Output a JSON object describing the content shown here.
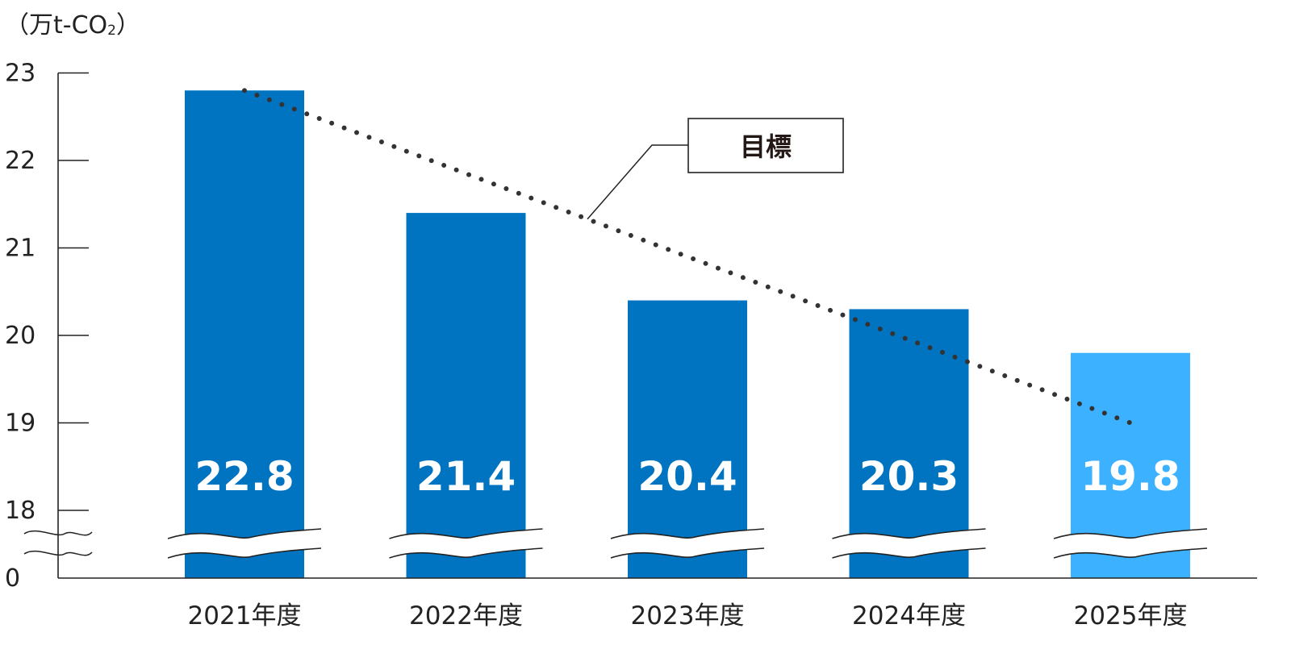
{
  "chart_data": {
    "type": "bar",
    "unit_label": "（万t-CO",
    "unit_sub": "2",
    "unit_close": "）",
    "y_ticks": [
      "0",
      "18",
      "19",
      "20",
      "21",
      "22",
      "23"
    ],
    "axis_break": true,
    "ylim": [
      18,
      23
    ],
    "categories": [
      "2021年度",
      "2022年度",
      "2023年度",
      "2024年度",
      "2025年度"
    ],
    "series": [
      {
        "values": [
          22.8,
          21.4,
          20.4,
          20.3,
          19.8
        ]
      }
    ],
    "value_labels": [
      "22.8",
      "21.4",
      "20.4",
      "20.3",
      "19.8"
    ],
    "target": {
      "label": "目標",
      "start": 22.8,
      "end": 19.0
    },
    "colors": {
      "actual": "#0074c1",
      "forecast": "#3cb1ff",
      "target_line": "#333333"
    }
  }
}
